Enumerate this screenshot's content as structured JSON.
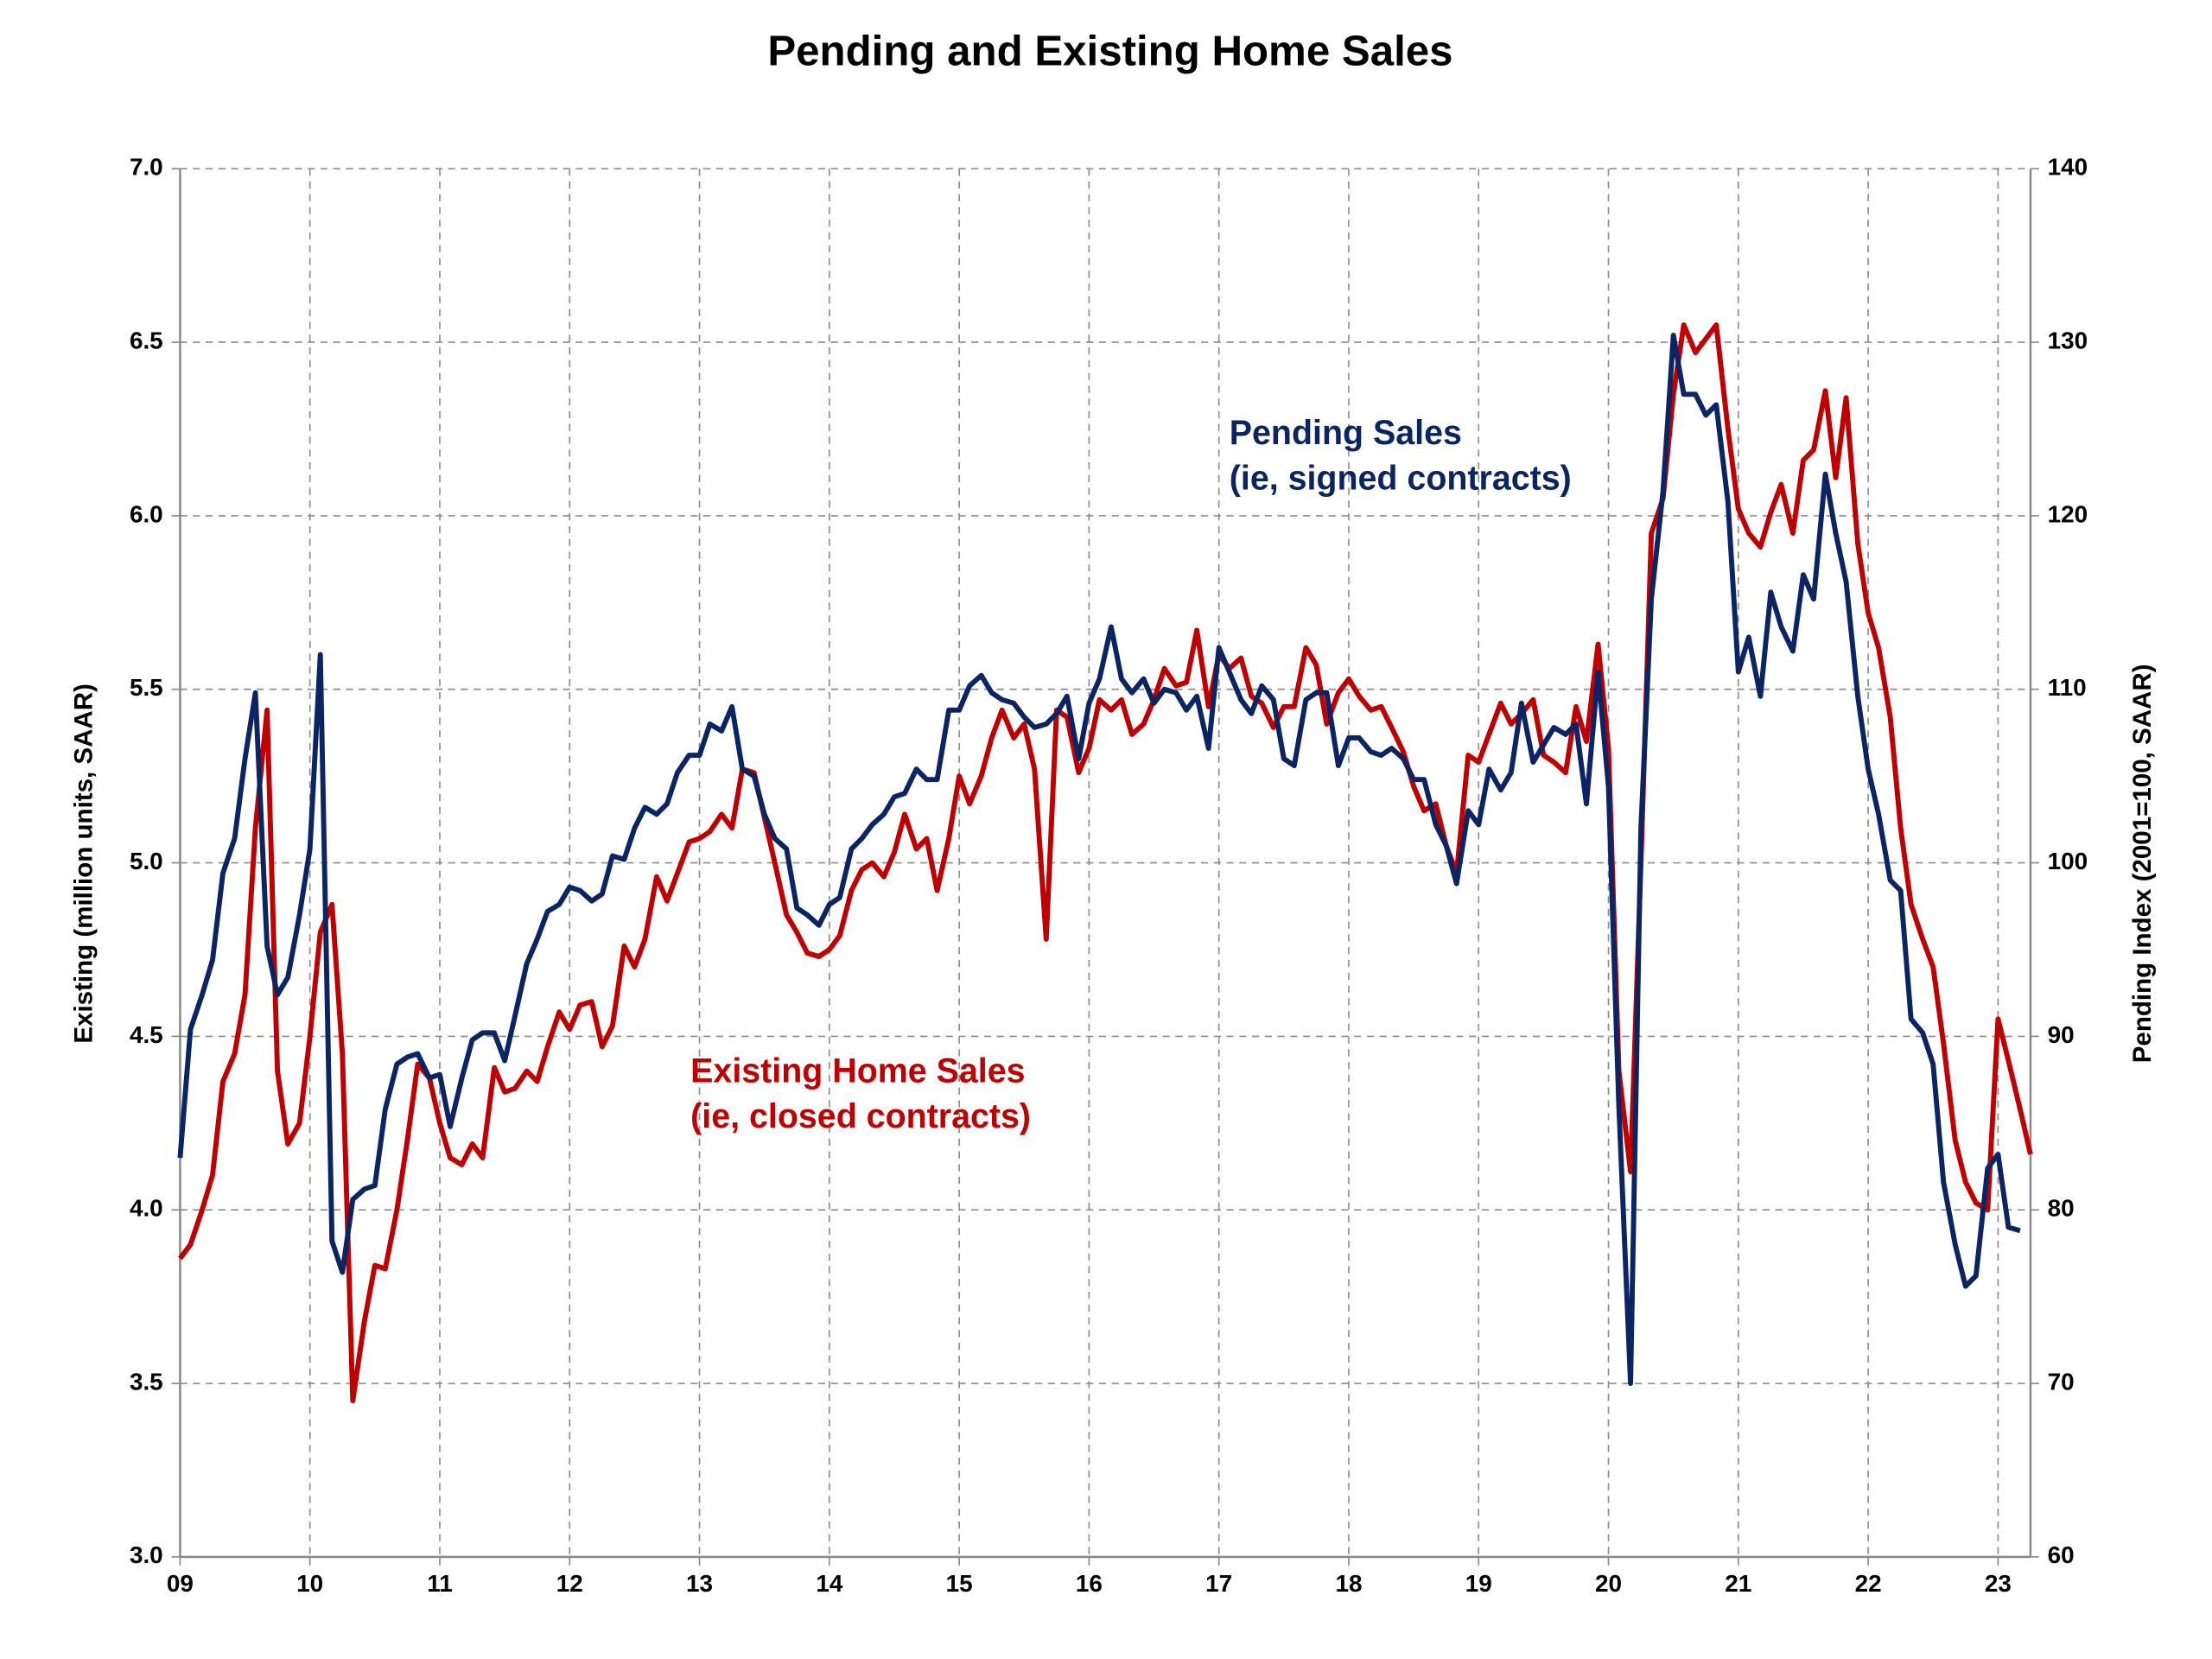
{
  "chart_data": {
    "type": "line",
    "title": "Pending and Existing Home Sales",
    "y_label": "Existing (million units, SAAR)",
    "y2_label": "Pending Index (2001=100, SAAR)",
    "annotations": [
      {
        "text": "Pending Sales",
        "color": "#0b2463"
      },
      {
        "text": "(ie, signed contracts)",
        "color": "#0b2463"
      },
      {
        "text": "Existing Home Sales",
        "color": "#c00000"
      },
      {
        "text": "(ie, closed contracts)",
        "color": "#c00000"
      }
    ],
    "grid": true,
    "xlim": [
      2009,
      2023.25
    ],
    "xticks": [
      {
        "value": 2009,
        "label": "09"
      },
      {
        "value": 2010,
        "label": "10"
      },
      {
        "value": 2011,
        "label": "11"
      },
      {
        "value": 2012,
        "label": "12"
      },
      {
        "value": 2013,
        "label": "13"
      },
      {
        "value": 2014,
        "label": "14"
      },
      {
        "value": 2015,
        "label": "15"
      },
      {
        "value": 2016,
        "label": "16"
      },
      {
        "value": 2017,
        "label": "17"
      },
      {
        "value": 2018,
        "label": "18"
      },
      {
        "value": 2019,
        "label": "19"
      },
      {
        "value": 2020,
        "label": "20"
      },
      {
        "value": 2021,
        "label": "21"
      },
      {
        "value": 2022,
        "label": "22"
      },
      {
        "value": 2023,
        "label": "23"
      }
    ],
    "ylim": [
      3,
      7
    ],
    "yticks": [
      {
        "value": 3,
        "label": "3.0"
      },
      {
        "value": 3.5,
        "label": "3.5"
      },
      {
        "value": 4,
        "label": "4.0"
      },
      {
        "value": 4.5,
        "label": "4.5"
      },
      {
        "value": 5,
        "label": "5.0"
      },
      {
        "value": 5.5,
        "label": "5.5"
      },
      {
        "value": 6,
        "label": "6.0"
      },
      {
        "value": 6.5,
        "label": "6.5"
      },
      {
        "value": 7,
        "label": "7.0"
      }
    ],
    "y2lim": [
      60,
      140
    ],
    "y2ticks": [
      60,
      70,
      80,
      90,
      100,
      110,
      120,
      130,
      140
    ],
    "x": [
      2009,
      2009.08,
      2009.17,
      2009.25,
      2009.33,
      2009.42,
      2009.5,
      2009.58,
      2009.67,
      2009.75,
      2009.83,
      2009.92,
      2010,
      2010.08,
      2010.17,
      2010.25,
      2010.33,
      2010.42,
      2010.5,
      2010.58,
      2010.67,
      2010.75,
      2010.83,
      2010.92,
      2011,
      2011.08,
      2011.17,
      2011.25,
      2011.33,
      2011.42,
      2011.5,
      2011.58,
      2011.67,
      2011.75,
      2011.83,
      2011.92,
      2012,
      2012.08,
      2012.17,
      2012.25,
      2012.33,
      2012.42,
      2012.5,
      2012.58,
      2012.67,
      2012.75,
      2012.83,
      2012.92,
      2013,
      2013.08,
      2013.17,
      2013.25,
      2013.33,
      2013.42,
      2013.5,
      2013.58,
      2013.67,
      2013.75,
      2013.83,
      2013.92,
      2014,
      2014.08,
      2014.17,
      2014.25,
      2014.33,
      2014.42,
      2014.5,
      2014.58,
      2014.67,
      2014.75,
      2014.83,
      2014.92,
      2015,
      2015.08,
      2015.17,
      2015.25,
      2015.33,
      2015.42,
      2015.5,
      2015.58,
      2015.67,
      2015.75,
      2015.83,
      2015.92,
      2016,
      2016.08,
      2016.17,
      2016.25,
      2016.33,
      2016.42,
      2016.5,
      2016.58,
      2016.67,
      2016.75,
      2016.83,
      2016.92,
      2017,
      2017.08,
      2017.17,
      2017.25,
      2017.33,
      2017.42,
      2017.5,
      2017.58,
      2017.67,
      2017.75,
      2017.83,
      2017.92,
      2018,
      2018.08,
      2018.17,
      2018.25,
      2018.33,
      2018.42,
      2018.5,
      2018.58,
      2018.67,
      2018.75,
      2018.83,
      2018.92,
      2019,
      2019.08,
      2019.17,
      2019.25,
      2019.33,
      2019.42,
      2019.5,
      2019.58,
      2019.67,
      2019.75,
      2019.83,
      2019.92,
      2020,
      2020.08,
      2020.17,
      2020.25,
      2020.33,
      2020.42,
      2020.5,
      2020.58,
      2020.67,
      2020.75,
      2020.83,
      2020.92,
      2021,
      2021.08,
      2021.17,
      2021.25,
      2021.33,
      2021.42,
      2021.5,
      2021.58,
      2021.67,
      2021.75,
      2021.83,
      2021.92,
      2022,
      2022.08,
      2022.17,
      2022.25,
      2022.33,
      2022.42,
      2022.5,
      2022.58,
      2022.67,
      2022.75,
      2022.83,
      2022.92,
      2023,
      2023.08,
      2023.17,
      2023.25
    ],
    "series": [
      {
        "name": "Existing Home Sales",
        "color": "#c00000",
        "values": [
          3.86,
          3.9,
          4.0,
          4.1,
          4.37,
          4.45,
          4.62,
          5.1,
          5.44,
          4.4,
          4.19,
          4.25,
          4.5,
          4.8,
          4.88,
          4.45,
          3.45,
          3.68,
          3.84,
          3.83,
          4.0,
          4.2,
          4.42,
          4.38,
          4.25,
          4.15,
          4.13,
          4.19,
          4.15,
          4.41,
          4.34,
          4.35,
          4.4,
          4.37,
          4.47,
          4.57,
          4.52,
          4.59,
          4.6,
          4.47,
          4.53,
          4.76,
          4.7,
          4.78,
          4.96,
          4.89,
          4.97,
          5.06,
          5.07,
          5.09,
          5.14,
          5.1,
          5.27,
          5.26,
          5.13,
          5.0,
          4.85,
          4.8,
          4.74,
          4.73,
          4.75,
          4.79,
          4.92,
          4.98,
          5.0,
          4.96,
          5.03,
          5.14,
          5.04,
          5.07,
          4.92,
          5.07,
          5.25,
          5.17,
          5.25,
          5.36,
          5.44,
          5.36,
          5.4,
          5.27,
          4.78,
          5.44,
          5.42,
          5.26,
          5.33,
          5.47,
          5.44,
          5.47,
          5.37,
          5.4,
          5.47,
          5.56,
          5.51,
          5.52,
          5.67,
          5.45,
          5.6,
          5.56,
          5.59,
          5.48,
          5.46,
          5.39,
          5.45,
          5.45,
          5.62,
          5.57,
          5.4,
          5.49,
          5.53,
          5.48,
          5.44,
          5.45,
          5.39,
          5.32,
          5.22,
          5.15,
          5.17,
          5.05,
          4.97,
          5.31,
          5.29,
          5.37,
          5.46,
          5.4,
          5.43,
          5.47,
          5.31,
          5.29,
          5.26,
          5.45,
          5.35,
          5.63,
          5.33,
          4.4,
          4.11,
          5.0,
          5.95,
          6.05,
          6.35,
          6.55,
          6.47,
          6.51,
          6.55,
          6.25,
          6.02,
          5.95,
          5.91,
          6.01,
          6.09,
          5.95,
          6.16,
          6.19,
          6.36,
          6.11,
          6.34,
          5.92,
          5.72,
          5.62,
          5.42,
          5.1,
          4.88,
          4.78,
          4.7,
          4.48,
          4.2,
          4.08,
          4.02,
          4.0,
          4.55,
          4.43,
          4.29,
          4.16
        ]
      },
      {
        "name": "Pending Sales",
        "color": "#0b2463",
        "axis": "y2",
        "values": [
          83,
          90.4,
          92.4,
          94.4,
          99.4,
          101.4,
          106,
          109.8,
          95.2,
          92.4,
          93.4,
          97,
          100.8,
          112,
          78.2,
          76.4,
          80.6,
          81.2,
          81.4,
          85.8,
          88.4,
          88.8,
          89,
          87.6,
          87.8,
          84.8,
          87.6,
          89.8,
          90.2,
          90.2,
          88.6,
          91.2,
          94.2,
          95.6,
          97.2,
          97.6,
          98.6,
          98.4,
          97.8,
          98.2,
          100.4,
          100.2,
          102,
          103.2,
          102.8,
          103.4,
          105.2,
          106.2,
          106.2,
          108,
          107.6,
          109,
          105.4,
          105,
          102.8,
          101.4,
          100.8,
          97.4,
          97,
          96.4,
          97.6,
          98,
          100.8,
          101.4,
          102.2,
          102.8,
          103.8,
          104,
          105.4,
          104.8,
          104.8,
          108.8,
          108.8,
          110.2,
          110.8,
          109.8,
          109.4,
          109.2,
          108.4,
          107.8,
          108,
          108.6,
          109.6,
          106,
          109.2,
          110.6,
          113.6,
          110.6,
          109.8,
          110.6,
          109.2,
          110,
          109.8,
          108.8,
          109.6,
          106.6,
          112.4,
          111,
          109.4,
          108.6,
          110.2,
          109.4,
          106,
          105.6,
          109.4,
          109.8,
          109.8,
          105.6,
          107.2,
          107.2,
          106.4,
          106.2,
          106.6,
          106,
          104.8,
          104.8,
          102.2,
          101,
          98.8,
          103,
          102.2,
          105.4,
          104.2,
          105.2,
          109.2,
          105.8,
          106.8,
          107.8,
          107.4,
          108,
          103.4,
          111,
          104.4,
          86,
          70,
          102,
          115.2,
          121.4,
          130.4,
          127,
          127,
          125.8,
          126.4,
          120.8,
          111,
          113,
          109.6,
          115.6,
          113.6,
          112.2,
          116.6,
          115.2,
          122.4,
          119,
          116.2,
          109.6,
          105.4,
          102.8,
          99,
          98.4,
          91,
          90.2,
          88.4,
          81.6,
          78,
          75.6,
          76.2,
          82.4,
          83.2,
          79,
          78.8,
          null
        ]
      }
    ]
  }
}
